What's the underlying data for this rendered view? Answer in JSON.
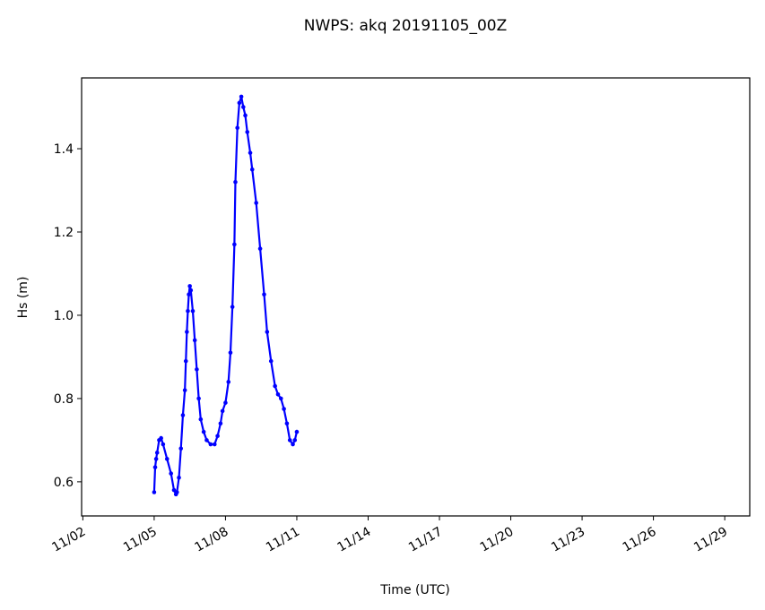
{
  "chart_data": {
    "type": "line",
    "title": "NWPS: akq 20191105_00Z",
    "xlabel": "Time (UTC)",
    "ylabel": "Hs (m)",
    "xlim": [
      "2019-11-01T22:45",
      "2019-11-30T01:15"
    ],
    "ylim": [
      0.518,
      1.57
    ],
    "grid": false,
    "x_ticks": [
      {
        "date": "2019-11-02",
        "label": "11/02"
      },
      {
        "date": "2019-11-05",
        "label": "11/05"
      },
      {
        "date": "2019-11-08",
        "label": "11/08"
      },
      {
        "date": "2019-11-11",
        "label": "11/11"
      },
      {
        "date": "2019-11-14",
        "label": "11/14"
      },
      {
        "date": "2019-11-17",
        "label": "11/17"
      },
      {
        "date": "2019-11-20",
        "label": "11/20"
      },
      {
        "date": "2019-11-23",
        "label": "11/23"
      },
      {
        "date": "2019-11-26",
        "label": "11/26"
      },
      {
        "date": "2019-11-29",
        "label": "11/29"
      }
    ],
    "y_ticks": [
      {
        "value": 0.6,
        "label": "0.6"
      },
      {
        "value": 0.8,
        "label": "0.8"
      },
      {
        "value": 1.0,
        "label": "1.0"
      },
      {
        "value": 1.2,
        "label": "1.2"
      },
      {
        "value": 1.4,
        "label": "1.4"
      }
    ],
    "series": [
      {
        "color": "#0000ff",
        "marker": "circle",
        "x": [
          "2019-11-05T00",
          "2019-11-05T01",
          "2019-11-05T02",
          "2019-11-05T03",
          "2019-11-05T05",
          "2019-11-05T07",
          "2019-11-05T09",
          "2019-11-05T13",
          "2019-11-05T17",
          "2019-11-05T20",
          "2019-11-05T22",
          "2019-11-05T23",
          "2019-11-06T01",
          "2019-11-06T03",
          "2019-11-06T05",
          "2019-11-06T07",
          "2019-11-06T08",
          "2019-11-06T09",
          "2019-11-06T10",
          "2019-11-06T11",
          "2019-11-06T12",
          "2019-11-06T13",
          "2019-11-06T15",
          "2019-11-06T17",
          "2019-11-06T19",
          "2019-11-06T21",
          "2019-11-06T23",
          "2019-11-07T02",
          "2019-11-07T05",
          "2019-11-07T09",
          "2019-11-07T13",
          "2019-11-07T16",
          "2019-11-07T19",
          "2019-11-07T21",
          "2019-11-08T00",
          "2019-11-08T03",
          "2019-11-08T05",
          "2019-11-08T07",
          "2019-11-08T09",
          "2019-11-08T10",
          "2019-11-08T12",
          "2019-11-08T14",
          "2019-11-08T16",
          "2019-11-08T18",
          "2019-11-08T20",
          "2019-11-08T22",
          "2019-11-09T01",
          "2019-11-09T03",
          "2019-11-09T07",
          "2019-11-09T11",
          "2019-11-09T15",
          "2019-11-09T18",
          "2019-11-09T22",
          "2019-11-10T02",
          "2019-11-10T05",
          "2019-11-10T08",
          "2019-11-10T11",
          "2019-11-10T14",
          "2019-11-10T17",
          "2019-11-10T20",
          "2019-11-10T22",
          "2019-11-11T00"
        ],
        "y": [
          0.575,
          0.635,
          0.655,
          0.67,
          0.7,
          0.705,
          0.69,
          0.655,
          0.62,
          0.58,
          0.57,
          0.575,
          0.61,
          0.68,
          0.76,
          0.82,
          0.89,
          0.96,
          1.01,
          1.05,
          1.07,
          1.06,
          1.01,
          0.94,
          0.87,
          0.8,
          0.75,
          0.72,
          0.7,
          0.69,
          0.69,
          0.71,
          0.74,
          0.77,
          0.79,
          0.84,
          0.91,
          1.02,
          1.17,
          1.32,
          1.45,
          1.51,
          1.525,
          1.5,
          1.48,
          1.44,
          1.39,
          1.35,
          1.27,
          1.16,
          1.05,
          0.96,
          0.89,
          0.83,
          0.81,
          0.8,
          0.775,
          0.74,
          0.7,
          0.69,
          0.7,
          0.72
        ]
      }
    ]
  }
}
